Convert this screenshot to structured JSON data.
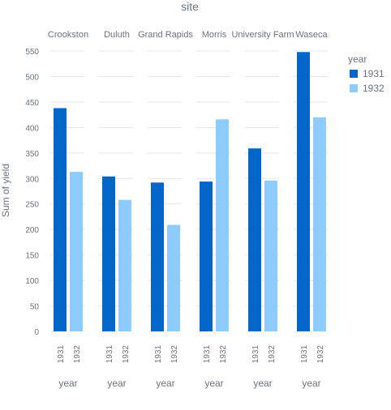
{
  "chart_data": {
    "type": "bar",
    "title": "site",
    "ylabel": "Sum of yield",
    "xlabel": "year",
    "ylim": [
      0,
      560
    ],
    "yticks": [
      0,
      50,
      100,
      150,
      200,
      250,
      300,
      350,
      400,
      450,
      500,
      550
    ],
    "grid": true,
    "legend": {
      "title": "year",
      "placement": "right",
      "entries": [
        "1931",
        "1932"
      ]
    },
    "colors": {
      "1931": "#0466c8",
      "1932": "#8ecbff"
    },
    "categories": [
      "1931",
      "1932"
    ],
    "facets": [
      {
        "site": "Crookston",
        "values": [
          438,
          313
        ]
      },
      {
        "site": "Duluth",
        "values": [
          304,
          258
        ]
      },
      {
        "site": "Grand Rapids",
        "values": [
          292,
          209
        ]
      },
      {
        "site": "Morris",
        "values": [
          294,
          416
        ]
      },
      {
        "site": "University Farm",
        "values": [
          359,
          296
        ]
      },
      {
        "site": "Waseca",
        "values": [
          548,
          420
        ]
      }
    ]
  }
}
